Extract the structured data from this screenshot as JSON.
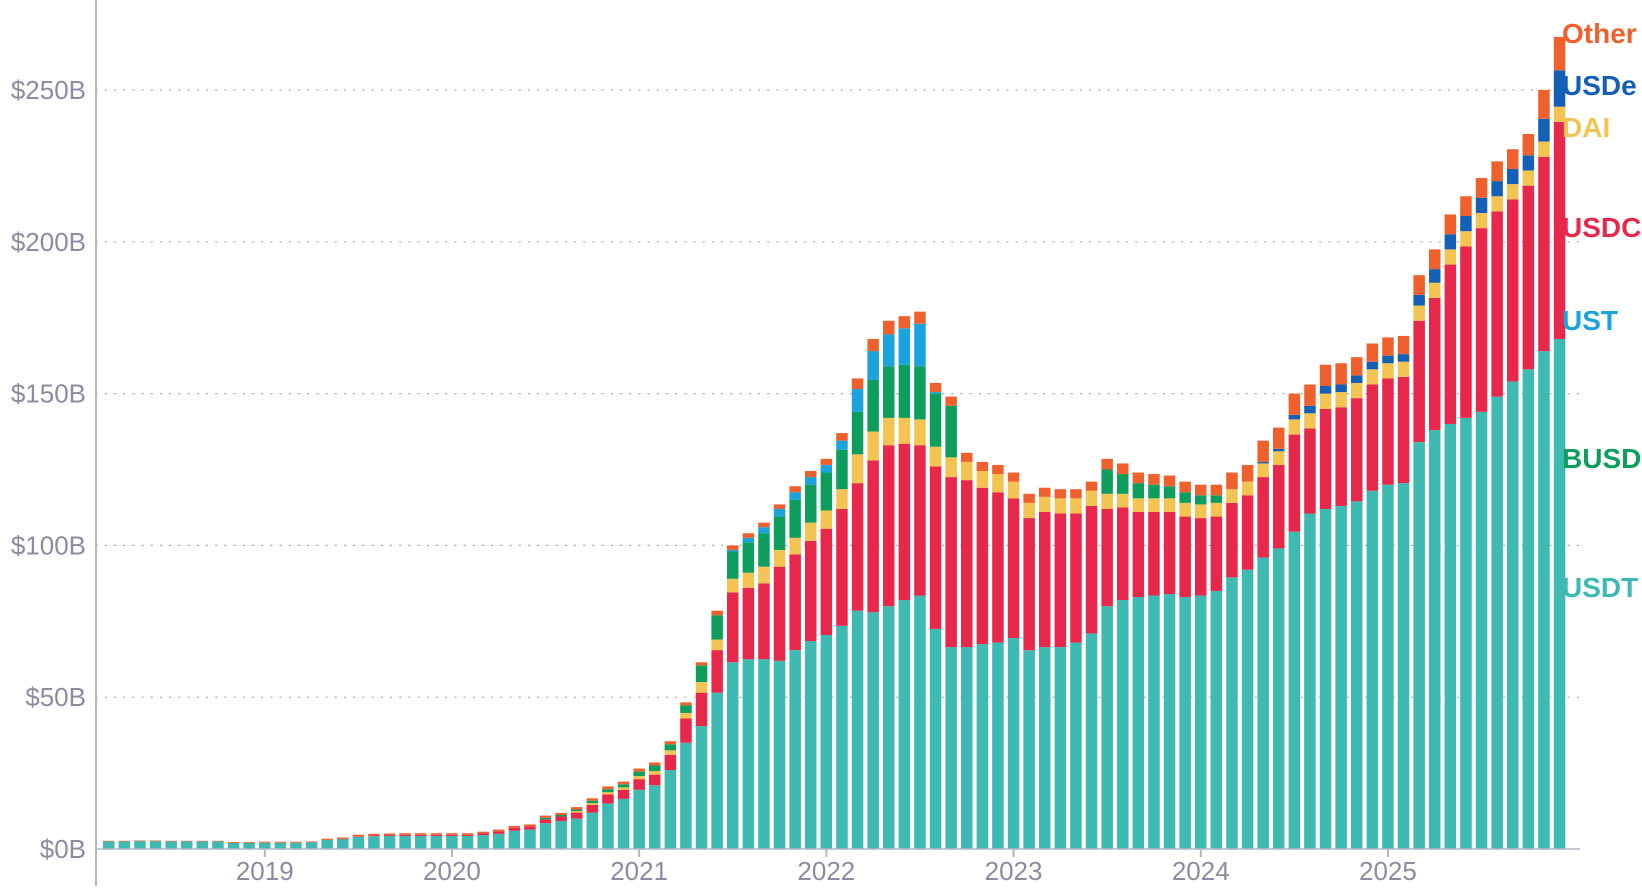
{
  "chart_data": {
    "type": "bar",
    "stacked": true,
    "title": "",
    "xlabel": "",
    "ylabel": "",
    "ylim": [
      0,
      280
    ],
    "y_ticks": [
      {
        "value": 0,
        "label": "$0B"
      },
      {
        "value": 50,
        "label": "$50B"
      },
      {
        "value": 100,
        "label": "$100B"
      },
      {
        "value": 150,
        "label": "$150B"
      },
      {
        "value": 200,
        "label": "$200B"
      },
      {
        "value": 250,
        "label": "$250B"
      }
    ],
    "x_ticks": [
      {
        "index": 10,
        "label": "2019"
      },
      {
        "index": 22,
        "label": "2020"
      },
      {
        "index": 34,
        "label": "2021"
      },
      {
        "index": 46,
        "label": "2022"
      },
      {
        "index": 58,
        "label": "2023"
      },
      {
        "index": 70,
        "label": "2024"
      },
      {
        "index": 82,
        "label": "2025"
      }
    ],
    "grid": "horizontal dotted",
    "legend_placement": "right, inline labels",
    "series": [
      {
        "name": "USDT",
        "color": "#3dbbb3",
        "values": [
          2.5,
          2.5,
          2.6,
          2.6,
          2.5,
          2.5,
          2.5,
          2.5,
          2.0,
          2.0,
          2.1,
          2.1,
          2.1,
          2.2,
          3.0,
          3.3,
          4.0,
          4.2,
          4.3,
          4.3,
          4.3,
          4.3,
          4.3,
          4.3,
          4.6,
          5.0,
          6.0,
          6.4,
          8.5,
          9.2,
          10.0,
          12.0,
          15.0,
          16.5,
          19.5,
          21.0,
          26.0,
          35.0,
          40.5,
          51.5,
          61.5,
          62.5,
          62.5,
          62.0,
          65.5,
          68.5,
          70.5,
          73.5,
          78.5,
          78.0,
          80.0,
          82.0,
          83.5,
          72.5,
          66.5,
          66.5,
          67.5,
          68.0,
          69.5,
          65.5,
          66.5,
          66.5,
          68.0,
          71.0,
          80.0,
          82.0,
          83.0,
          83.5,
          84.0,
          83.0,
          83.5,
          85.0,
          89.5,
          92.0,
          96.0,
          99.0,
          104.5,
          110.5,
          112.0,
          113.0,
          114.5,
          118.0,
          120.0,
          120.5,
          134.0,
          138.0,
          140.0,
          142.0,
          144.0,
          149.0,
          154.0,
          158.0,
          164.0,
          168.0
        ]
      },
      {
        "name": "USDC",
        "color": "#e8284a",
        "values": [
          0,
          0,
          0,
          0,
          0,
          0,
          0,
          0,
          0,
          0,
          0,
          0,
          0,
          0,
          0,
          0.1,
          0.2,
          0.3,
          0.3,
          0.4,
          0.4,
          0.4,
          0.4,
          0.4,
          0.6,
          0.8,
          1.0,
          1.1,
          1.3,
          1.5,
          2.0,
          2.5,
          3.0,
          3.0,
          3.5,
          3.5,
          5.0,
          8.0,
          11.0,
          14.0,
          23.0,
          23.5,
          25.0,
          31.0,
          31.5,
          33.0,
          35.0,
          38.5,
          42.0,
          50.0,
          53.0,
          51.5,
          49.5,
          53.5,
          56.0,
          55.0,
          51.5,
          49.5,
          46.0,
          43.5,
          44.5,
          44.0,
          42.5,
          42.0,
          32.0,
          30.5,
          28.0,
          27.5,
          27.0,
          26.5,
          25.5,
          24.5,
          24.5,
          24.5,
          26.5,
          27.5,
          32.0,
          28.0,
          33.0,
          32.5,
          34.0,
          35.0,
          35.0,
          35.0,
          40.0,
          43.5,
          52.5,
          56.5,
          60.5,
          61.0,
          60.0,
          60.5,
          64.0,
          71.5
        ]
      },
      {
        "name": "DAI",
        "color": "#f4c453",
        "values": [
          0,
          0,
          0,
          0,
          0,
          0,
          0,
          0,
          0,
          0,
          0,
          0,
          0,
          0,
          0,
          0,
          0,
          0,
          0,
          0,
          0,
          0,
          0,
          0,
          0,
          0,
          0,
          0,
          0,
          0,
          0.5,
          0.6,
          0.7,
          0.8,
          1.0,
          1.2,
          1.5,
          1.8,
          3.5,
          3.5,
          4.5,
          5.0,
          5.5,
          5.5,
          5.5,
          6.0,
          6.0,
          6.5,
          9.5,
          9.5,
          9.0,
          8.5,
          8.5,
          6.5,
          6.5,
          6.0,
          5.5,
          6.0,
          5.5,
          5.0,
          5.0,
          5.0,
          5.0,
          5.0,
          5.0,
          4.5,
          4.5,
          4.5,
          4.5,
          4.5,
          4.5,
          4.5,
          4.5,
          4.5,
          4.5,
          4.5,
          5.0,
          5.0,
          5.0,
          5.0,
          5.0,
          5.0,
          5.0,
          5.0,
          5.0,
          5.0,
          5.0,
          5.0,
          5.0,
          5.0,
          5.0,
          5.0,
          5.0,
          5.0
        ]
      },
      {
        "name": "BUSD",
        "color": "#0d9e5e",
        "values": [
          0,
          0,
          0,
          0,
          0,
          0,
          0,
          0,
          0,
          0,
          0,
          0,
          0,
          0,
          0,
          0,
          0,
          0,
          0,
          0,
          0,
          0,
          0,
          0,
          0,
          0,
          0,
          0,
          0.5,
          0.5,
          0.5,
          0.8,
          1.0,
          1.0,
          1.5,
          1.8,
          2.0,
          2.5,
          5.5,
          8.0,
          9.0,
          10.0,
          11.0,
          11.0,
          12.5,
          12.5,
          12.5,
          13.0,
          14.0,
          17.0,
          17.0,
          17.5,
          17.5,
          17.5,
          17.0,
          0,
          0,
          0,
          0,
          0,
          0,
          0,
          0,
          0,
          8.0,
          6.5,
          5.0,
          4.5,
          4.0,
          3.5,
          3.0,
          2.5,
          0,
          0,
          0,
          0,
          0,
          0,
          0,
          0,
          0,
          0,
          0,
          0,
          0,
          0,
          0,
          0,
          0,
          0,
          0,
          0,
          0,
          0
        ]
      },
      {
        "name": "UST",
        "color": "#1aa3dc",
        "values": [
          0,
          0,
          0,
          0,
          0,
          0,
          0,
          0,
          0,
          0,
          0,
          0,
          0,
          0,
          0,
          0,
          0,
          0,
          0,
          0,
          0,
          0,
          0,
          0,
          0,
          0,
          0,
          0,
          0,
          0,
          0,
          0,
          0,
          0,
          0,
          0,
          0,
          0,
          0,
          0,
          0.5,
          1.5,
          2.0,
          2.5,
          2.5,
          2.5,
          2.5,
          3.0,
          7.5,
          9.5,
          10.5,
          12.0,
          14.0,
          0.5,
          0,
          0,
          0,
          0,
          0,
          0,
          0,
          0,
          0,
          0,
          0,
          0,
          0,
          0,
          0,
          0,
          0,
          0,
          0,
          0,
          0,
          0,
          0,
          0,
          0,
          0,
          0,
          0,
          0,
          0,
          0,
          0,
          0,
          0,
          0,
          0,
          0,
          0,
          0,
          0
        ]
      },
      {
        "name": "USDe",
        "color": "#1560b7",
        "values": [
          0,
          0,
          0,
          0,
          0,
          0,
          0,
          0,
          0,
          0,
          0,
          0,
          0,
          0,
          0,
          0,
          0,
          0,
          0,
          0,
          0,
          0,
          0,
          0,
          0,
          0,
          0,
          0,
          0,
          0,
          0,
          0,
          0,
          0,
          0,
          0,
          0,
          0,
          0,
          0,
          0,
          0,
          0,
          0,
          0,
          0,
          0,
          0,
          0,
          0,
          0,
          0,
          0,
          0,
          0,
          0,
          0,
          0,
          0,
          0,
          0,
          0,
          0,
          0,
          0,
          0,
          0,
          0,
          0,
          0,
          0,
          0,
          0,
          0,
          0.5,
          0.8,
          1.5,
          2.5,
          2.5,
          2.5,
          2.5,
          2.5,
          2.5,
          2.5,
          3.5,
          4.5,
          5.0,
          5.0,
          5.0,
          5.0,
          5.0,
          5.0,
          7.5,
          12.0
        ]
      },
      {
        "name": "Other",
        "color": "#f0602c",
        "values": [
          0.2,
          0.2,
          0.2,
          0.2,
          0.2,
          0.2,
          0.2,
          0.2,
          0.3,
          0.3,
          0.3,
          0.3,
          0.3,
          0.3,
          0.4,
          0.4,
          0.5,
          0.5,
          0.5,
          0.5,
          0.5,
          0.5,
          0.5,
          0.5,
          0.5,
          0.6,
          0.6,
          0.6,
          0.7,
          0.7,
          0.8,
          0.8,
          0.9,
          0.9,
          1.0,
          1.0,
          1.0,
          1.0,
          1.0,
          1.5,
          1.5,
          1.5,
          1.5,
          1.5,
          2.0,
          2.0,
          2.0,
          2.5,
          3.5,
          4.0,
          4.5,
          4.0,
          4.0,
          3.0,
          3.0,
          3.0,
          3.0,
          3.0,
          3.0,
          3.0,
          3.0,
          3.0,
          3.0,
          3.0,
          3.5,
          3.5,
          3.5,
          3.5,
          3.5,
          3.5,
          3.5,
          3.5,
          5.5,
          5.5,
          7.0,
          7.0,
          7.0,
          7.0,
          7.0,
          7.0,
          6.0,
          6.0,
          6.0,
          6.0,
          6.5,
          6.5,
          6.5,
          6.5,
          6.5,
          6.5,
          6.5,
          7.0,
          9.5,
          11.0
        ]
      }
    ]
  }
}
